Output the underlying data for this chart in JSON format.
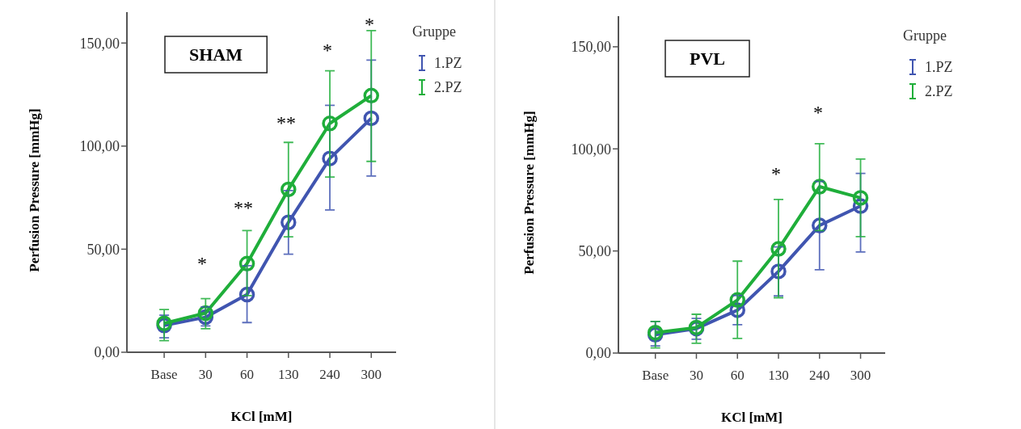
{
  "chart_data": [
    {
      "type": "line",
      "title": "SHAM",
      "xlabel": "KCl [mM]",
      "ylabel": "Perfusion Pressure [mmHg]",
      "legend_title": "Gruppe",
      "legend": "top right",
      "marker": "circle",
      "line_style": "solid",
      "grid": false,
      "categories": [
        "Base",
        "30",
        "60",
        "130",
        "240",
        "300"
      ],
      "ylim": [
        0,
        165
      ],
      "yticks": [
        {
          "value": 0,
          "label": "0,00"
        },
        {
          "value": 50,
          "label": "50,00"
        },
        {
          "value": 100,
          "label": "100,00"
        },
        {
          "value": 150,
          "label": "150,00"
        }
      ],
      "series": [
        {
          "name": "1.PZ",
          "color": "#4055b0",
          "values": [
            13,
            17,
            28,
            63,
            94,
            113.5
          ],
          "errors": [
            [
              7,
              18
            ],
            [
              12.8,
              22
            ],
            [
              14.4,
              42
            ],
            [
              47.6,
              78.4
            ],
            [
              69,
              119.8
            ],
            [
              85.5,
              141.7
            ]
          ]
        },
        {
          "name": "2.PZ",
          "color": "#1fae3a",
          "values": [
            14,
            19,
            43,
            79,
            111,
            124.5
          ],
          "errors": [
            [
              5.6,
              20.7
            ],
            [
              11.4,
              26
            ],
            [
              27.5,
              59
            ],
            [
              56,
              101.8
            ],
            [
              85,
              136.5
            ],
            [
              92.6,
              156
            ]
          ]
        }
      ],
      "annotations": [
        "*",
        "**",
        "**",
        "*",
        "*"
      ]
    },
    {
      "type": "line",
      "title": "PVL",
      "xlabel": "KCl [mM]",
      "ylabel": "Perfusion Pressure [mmHg]",
      "legend_title": "Gruppe",
      "legend": "top right",
      "marker": "circle",
      "line_style": "solid",
      "grid": false,
      "categories": [
        "Base",
        "30",
        "60",
        "130",
        "240",
        "300"
      ],
      "ylim": [
        0,
        165
      ],
      "yticks": [
        {
          "value": 0,
          "label": "0,00"
        },
        {
          "value": 50,
          "label": "50,00"
        },
        {
          "value": 100,
          "label": "100,00"
        },
        {
          "value": 150,
          "label": "150,00"
        }
      ],
      "series": [
        {
          "name": "1.PZ",
          "color": "#4055b0",
          "values": [
            9,
            12,
            21,
            40,
            62.5,
            72
          ],
          "errors": [
            [
              3.5,
              15.5
            ],
            [
              6.8,
              17
            ],
            [
              13.9,
              28.2
            ],
            [
              28,
              52
            ],
            [
              40.8,
              84
            ],
            [
              49.5,
              88
            ]
          ]
        },
        {
          "name": "2.PZ",
          "color": "#1fae3a",
          "values": [
            10,
            12.5,
            26,
            51,
            81.5,
            76
          ],
          "errors": [
            [
              2.5,
              15.5
            ],
            [
              4.8,
              19
            ],
            [
              7.2,
              45
            ],
            [
              27.1,
              75.2
            ],
            [
              60,
              102.5
            ],
            [
              57,
              95
            ]
          ]
        }
      ],
      "annotations": [
        "*",
        "*"
      ]
    }
  ]
}
